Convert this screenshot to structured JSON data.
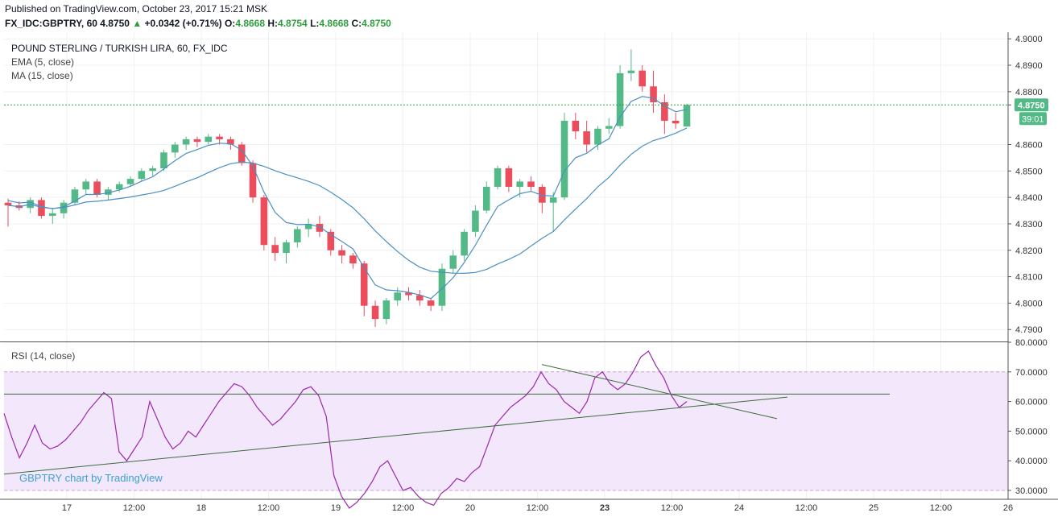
{
  "header": {
    "published": "Published on TradingView.com, October 23, 2017 15:21 MSK",
    "symbol": "FX_IDC:GBPTRY, 60",
    "last": "4.8750",
    "change_arrow": "▲",
    "change": "+0.0342 (+0.71%)",
    "open_label": "O:",
    "open": "4.8668",
    "high_label": "H:",
    "high": "4.8754",
    "low_label": "L:",
    "low": "4.8668",
    "close_label": "C:",
    "close": "4.8750"
  },
  "main_pane": {
    "title": "POUND STERLING / TURKISH LIRA, 60, FX_IDC",
    "indicator1": "EMA (5, close)",
    "indicator2": "MA (15, close)",
    "price_badge": "4.8750",
    "countdown_badge": "39:01"
  },
  "rsi_pane": {
    "title": "RSI (14, close)",
    "watermark": "GBPTRY chart by TradingView"
  },
  "colors": {
    "up": "#53b987",
    "down": "#eb4d5c",
    "ema": "#4a90c4",
    "rsi": "#9b27af",
    "rsi_band": "#f3e7fb",
    "trendline": "#3d6b3d"
  },
  "chart_data": [
    {
      "type": "candlestick",
      "title": "POUND STERLING / TURKISH LIRA, 60, FX_IDC",
      "x_labels": [
        "17",
        "12:00",
        "18",
        "12:00",
        "19",
        "12:00",
        "20",
        "12:00",
        "23",
        "12:00",
        "24",
        "12:00",
        "25",
        "12:00",
        "26"
      ],
      "y_ticks": [
        "4.9000",
        "4.8900",
        "4.8800",
        "4.8750",
        "4.8600",
        "4.8500",
        "4.8400",
        "4.8300",
        "4.8200",
        "4.8100",
        "4.8000",
        "4.7900"
      ],
      "ylim": [
        4.7855,
        4.9025
      ],
      "last_price": 4.875,
      "candles_ohlc": [
        [
          4.838,
          4.8395,
          4.829,
          4.837
        ],
        [
          4.837,
          4.8385,
          4.835,
          4.836
        ],
        [
          4.836,
          4.84,
          4.834,
          4.839
        ],
        [
          4.839,
          4.84,
          4.832,
          4.833
        ],
        [
          4.833,
          4.836,
          4.83,
          4.834
        ],
        [
          4.834,
          4.839,
          4.832,
          4.838
        ],
        [
          4.838,
          4.844,
          4.837,
          4.843
        ],
        [
          4.843,
          4.847,
          4.841,
          4.846
        ],
        [
          4.846,
          4.847,
          4.84,
          4.841
        ],
        [
          4.841,
          4.844,
          4.839,
          4.843
        ],
        [
          4.843,
          4.846,
          4.842,
          4.845
        ],
        [
          4.845,
          4.848,
          4.844,
          4.847
        ],
        [
          4.847,
          4.851,
          4.846,
          4.85
        ],
        [
          4.85,
          4.852,
          4.848,
          4.851
        ],
        [
          4.851,
          4.858,
          4.85,
          4.857
        ],
        [
          4.857,
          4.861,
          4.855,
          4.86
        ],
        [
          4.86,
          4.863,
          4.858,
          4.862
        ],
        [
          4.862,
          4.863,
          4.859,
          4.861
        ],
        [
          4.861,
          4.864,
          4.86,
          4.863
        ],
        [
          4.863,
          4.864,
          4.86,
          4.862
        ],
        [
          4.862,
          4.863,
          4.858,
          4.86
        ],
        [
          4.86,
          4.861,
          4.852,
          4.853
        ],
        [
          4.853,
          4.854,
          4.838,
          4.84
        ],
        [
          4.84,
          4.841,
          4.82,
          4.822
        ],
        [
          4.822,
          4.825,
          4.816,
          4.819
        ],
        [
          4.819,
          4.824,
          4.815,
          4.823
        ],
        [
          4.823,
          4.829,
          4.821,
          4.828
        ],
        [
          4.828,
          4.832,
          4.825,
          4.83
        ],
        [
          4.83,
          4.833,
          4.825,
          4.827
        ],
        [
          4.827,
          4.828,
          4.818,
          4.82
        ],
        [
          4.82,
          4.822,
          4.815,
          4.818
        ],
        [
          4.818,
          4.819,
          4.813,
          4.815
        ],
        [
          4.815,
          4.816,
          4.795,
          4.799
        ],
        [
          4.799,
          4.801,
          4.791,
          4.794
        ],
        [
          4.794,
          4.802,
          4.792,
          4.801
        ],
        [
          4.801,
          4.806,
          4.799,
          4.804
        ],
        [
          4.804,
          4.806,
          4.801,
          4.803
        ],
        [
          4.803,
          4.805,
          4.799,
          4.801
        ],
        [
          4.801,
          4.802,
          4.797,
          4.799
        ],
        [
          4.799,
          4.815,
          4.797,
          4.813
        ],
        [
          4.813,
          4.82,
          4.811,
          4.818
        ],
        [
          4.818,
          4.828,
          4.816,
          4.827
        ],
        [
          4.827,
          4.837,
          4.825,
          4.835
        ],
        [
          4.835,
          4.846,
          4.834,
          4.844
        ],
        [
          4.844,
          4.852,
          4.843,
          4.851
        ],
        [
          4.851,
          4.852,
          4.842,
          4.844
        ],
        [
          4.844,
          4.847,
          4.84,
          4.846
        ],
        [
          4.846,
          4.848,
          4.842,
          4.844
        ],
        [
          4.844,
          4.845,
          4.834,
          4.838
        ],
        [
          4.838,
          4.842,
          4.827,
          4.84
        ],
        [
          4.84,
          4.872,
          4.839,
          4.869
        ],
        [
          4.869,
          4.872,
          4.862,
          4.865
        ],
        [
          4.865,
          4.869,
          4.857,
          4.86
        ],
        [
          4.86,
          4.867,
          4.858,
          4.866
        ],
        [
          4.866,
          4.87,
          4.864,
          4.867
        ],
        [
          4.867,
          4.89,
          4.866,
          4.887
        ],
        [
          4.887,
          4.896,
          4.884,
          4.888
        ],
        [
          4.888,
          4.89,
          4.88,
          4.882
        ],
        [
          4.882,
          4.888,
          4.872,
          4.876
        ],
        [
          4.876,
          4.879,
          4.864,
          4.869
        ],
        [
          4.869,
          4.872,
          4.866,
          4.868
        ],
        [
          4.8668,
          4.8754,
          4.8668,
          4.875
        ]
      ],
      "series": [
        {
          "name": "EMA (5, close)",
          "values": [
            4.8388,
            4.8379,
            4.8382,
            4.8365,
            4.8357,
            4.8364,
            4.8386,
            4.8411,
            4.8411,
            4.8417,
            4.8428,
            4.8442,
            4.8461,
            4.8478,
            4.8508,
            4.8539,
            4.8566,
            4.8581,
            4.8597,
            4.8605,
            4.8603,
            4.8579,
            4.8519,
            4.842,
            4.8343,
            4.8305,
            4.8297,
            4.8298,
            4.8289,
            4.8259,
            4.8233,
            4.8205,
            4.8134,
            4.8069,
            4.805,
            4.8047,
            4.8041,
            4.8031,
            4.8017,
            4.8055,
            4.8096,
            4.8154,
            4.8219,
            4.8294,
            4.8366,
            4.8391,
            4.8414,
            4.8423,
            4.8408,
            4.8405,
            4.85,
            4.855,
            4.8567,
            4.8598,
            4.8622,
            4.8705,
            4.8763,
            4.8782,
            4.8775,
            4.8746,
            4.8724,
            4.8733
          ]
        }
      ]
    },
    {
      "type": "line",
      "title": "RSI (14, close)",
      "y_ticks": [
        "80.0000",
        "70.0000",
        "60.0000",
        "50.0000",
        "40.0000",
        "30.0000"
      ],
      "ylim": [
        27,
        80
      ],
      "band": [
        30,
        70
      ],
      "horizontal_level": 62.5,
      "series": [
        {
          "name": "RSI (14, close)",
          "values": [
            56,
            48,
            41,
            46,
            52,
            46,
            44,
            45,
            47,
            50,
            53,
            57,
            60,
            63,
            61,
            43,
            40,
            44,
            48,
            60,
            54,
            48,
            44,
            46,
            50,
            48,
            52,
            56,
            60,
            63,
            66,
            65,
            62,
            58,
            55,
            52,
            54,
            57,
            60,
            64,
            65,
            62,
            55,
            35,
            28,
            24,
            26,
            29,
            33,
            38,
            40,
            35,
            30,
            31,
            28,
            26,
            25,
            29,
            31,
            34,
            33,
            36,
            38,
            45,
            52,
            55,
            58,
            60,
            62,
            65,
            70,
            66,
            64,
            60,
            58,
            56,
            60,
            68,
            70,
            66,
            64,
            66,
            70,
            75,
            77,
            72,
            68,
            62,
            58,
            60
          ]
        }
      ]
    }
  ]
}
